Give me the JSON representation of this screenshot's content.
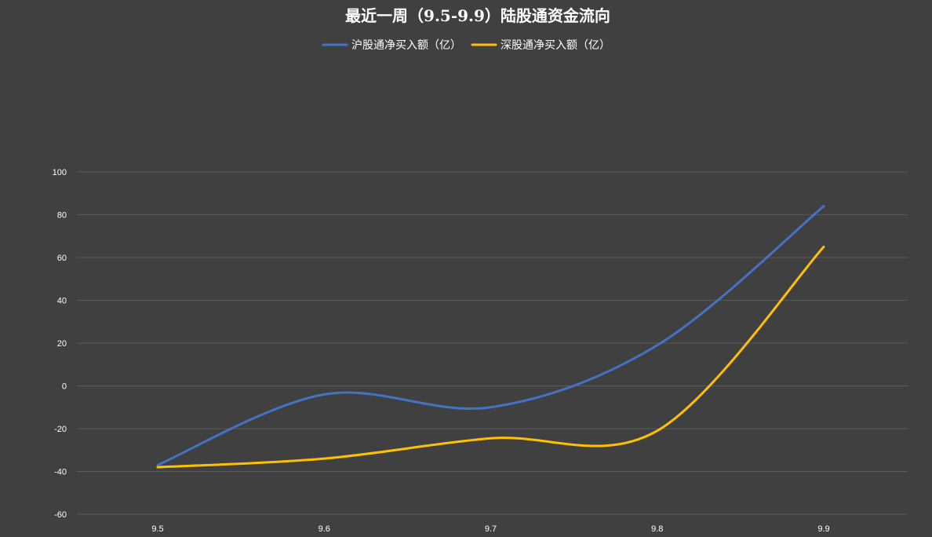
{
  "chart_data": {
    "type": "line",
    "title": "最近一周（9.5-9.9）陆股通资金流向",
    "categories": [
      "9.5",
      "9.6",
      "9.7",
      "9.8",
      "9.9"
    ],
    "series": [
      {
        "name": "沪股通净买入额（亿）",
        "values": [
          -37,
          -4,
          -10,
          19,
          84
        ],
        "color": "#4472c4"
      },
      {
        "name": "深股通净买入额（亿）",
        "values": [
          -38,
          -34,
          -24.5,
          -21,
          65
        ],
        "color": "#ffc000"
      }
    ],
    "ylim": [
      -60,
      100
    ],
    "yticks": [
      100,
      80,
      60,
      40,
      20,
      0,
      -20,
      -40,
      -60
    ],
    "grid": true,
    "legend_position": "top",
    "smooth": true
  }
}
